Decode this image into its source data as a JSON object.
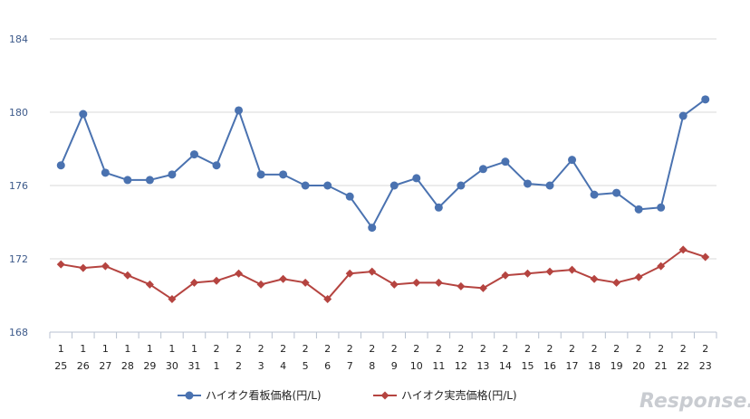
{
  "chart_data": {
    "type": "line",
    "title": "",
    "xlabel": "",
    "ylabel": "",
    "ylim": [
      168,
      184
    ],
    "yticks": [
      168,
      172,
      176,
      180,
      184
    ],
    "grid": true,
    "legend_position": "bottom",
    "categories": [
      {
        "top": "1",
        "bottom": "25"
      },
      {
        "top": "1",
        "bottom": "26"
      },
      {
        "top": "1",
        "bottom": "27"
      },
      {
        "top": "1",
        "bottom": "28"
      },
      {
        "top": "1",
        "bottom": "29"
      },
      {
        "top": "1",
        "bottom": "30"
      },
      {
        "top": "1",
        "bottom": "31"
      },
      {
        "top": "2",
        "bottom": "1"
      },
      {
        "top": "2",
        "bottom": "2"
      },
      {
        "top": "2",
        "bottom": "3"
      },
      {
        "top": "2",
        "bottom": "4"
      },
      {
        "top": "2",
        "bottom": "5"
      },
      {
        "top": "2",
        "bottom": "6"
      },
      {
        "top": "2",
        "bottom": "7"
      },
      {
        "top": "2",
        "bottom": "8"
      },
      {
        "top": "2",
        "bottom": "9"
      },
      {
        "top": "2",
        "bottom": "10"
      },
      {
        "top": "2",
        "bottom": "11"
      },
      {
        "top": "2",
        "bottom": "12"
      },
      {
        "top": "2",
        "bottom": "13"
      },
      {
        "top": "2",
        "bottom": "14"
      },
      {
        "top": "2",
        "bottom": "15"
      },
      {
        "top": "2",
        "bottom": "16"
      },
      {
        "top": "2",
        "bottom": "17"
      },
      {
        "top": "2",
        "bottom": "18"
      },
      {
        "top": "2",
        "bottom": "19"
      },
      {
        "top": "2",
        "bottom": "20"
      },
      {
        "top": "2",
        "bottom": "21"
      },
      {
        "top": "2",
        "bottom": "22"
      },
      {
        "top": "2",
        "bottom": "23"
      }
    ],
    "series": [
      {
        "name": "ハイオク看板価格(円/L)",
        "color": "#4a72b0",
        "marker": "circle",
        "values": [
          177.1,
          179.9,
          176.7,
          176.3,
          176.3,
          176.6,
          177.7,
          177.1,
          180.1,
          176.6,
          176.6,
          176.0,
          176.0,
          175.4,
          173.7,
          176.0,
          176.4,
          174.8,
          176.0,
          176.9,
          177.3,
          176.1,
          176.0,
          177.4,
          175.5,
          175.6,
          174.7,
          174.8,
          179.8,
          180.7
        ]
      },
      {
        "name": "ハイオク実売価格(円/L)",
        "color": "#b54440",
        "marker": "diamond",
        "values": [
          171.7,
          171.5,
          171.6,
          171.1,
          170.6,
          169.8,
          170.7,
          170.8,
          171.2,
          170.6,
          170.9,
          170.7,
          169.8,
          171.2,
          171.3,
          170.6,
          170.7,
          170.7,
          170.5,
          170.4,
          171.1,
          171.2,
          171.3,
          171.4,
          170.9,
          170.7,
          171.0,
          171.6,
          172.5,
          172.1
        ]
      }
    ]
  },
  "watermark": "Response."
}
